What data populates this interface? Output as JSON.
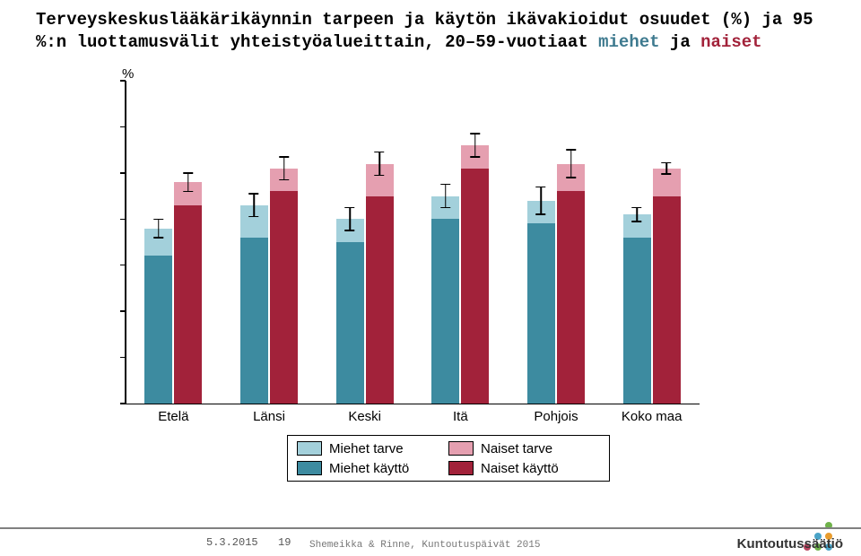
{
  "title_parts": {
    "prefix": "Terveyskeskuslääkärikäynnin tarpeen ja käytön ikävakioidut osuudet (%) ja 95 %:n luottamusvälit yhteistyöalueittain, 20–59-vuotiaat ",
    "miehet": "miehet",
    "joiner": " ja ",
    "naiset": "naiset"
  },
  "chart": {
    "type": "bar",
    "y_axis_title": "%",
    "ylim": [
      0,
      70
    ],
    "ytick_step": 10,
    "yticks": [
      0,
      10,
      20,
      30,
      40,
      50,
      60,
      70
    ],
    "categories": [
      "Etelä",
      "Länsi",
      "Keski",
      "Itä",
      "Pohjois",
      "Koko maa"
    ],
    "series": [
      {
        "key": "miehet_tarve",
        "label": "Miehet tarve",
        "color": "#a3d0db"
      },
      {
        "key": "miehet_kaytto",
        "label": "Miehet käyttö",
        "color": "#3d8ba0"
      },
      {
        "key": "naiset_tarve",
        "label": "Naiset tarve",
        "color": "#e59fb0"
      },
      {
        "key": "naiset_kaytto",
        "label": "Naiset käyttö",
        "color": "#a2223a"
      }
    ],
    "values": {
      "miehet_tarve": [
        38,
        43,
        40,
        45,
        44,
        41
      ],
      "miehet_kaytto": [
        32,
        36,
        35,
        40,
        39,
        36
      ],
      "naiset_tarve": [
        48,
        51,
        52,
        56,
        52,
        51
      ],
      "naiset_kaytto": [
        43,
        46,
        45,
        51,
        46,
        45
      ]
    },
    "errors": {
      "miehet_tarve": [
        2.0,
        2.5,
        2.5,
        2.5,
        3.0,
        1.5
      ],
      "miehet_kaytto": [
        2.0,
        2.5,
        2.5,
        2.5,
        3.0,
        1.5
      ],
      "naiset_tarve": [
        2.0,
        2.5,
        2.5,
        2.5,
        3.0,
        1.2
      ],
      "naiset_kaytto": [
        2.0,
        2.5,
        2.5,
        2.5,
        3.0,
        1.2
      ]
    },
    "bar_group_width": 0.6,
    "pair_gap": 0.02,
    "background_color": "#ffffff",
    "axis_color": "#000000"
  },
  "legend": {
    "items": [
      {
        "label": "Miehet tarve",
        "color": "#a3d0db"
      },
      {
        "label": "Naiset tarve",
        "color": "#e59fb0"
      },
      {
        "label": "Miehet käyttö",
        "color": "#3d8ba0"
      },
      {
        "label": "Naiset käyttö",
        "color": "#a2223a"
      }
    ]
  },
  "footer": {
    "date": "5.3.2015",
    "page": "19",
    "credit": "Shemeikka & Rinne, Kuntoutuspäivät 2015",
    "logo": "Kuntoutussäätiö"
  },
  "dots_colors": [
    "#6fb24a",
    "#4aa3c7",
    "#e89c2e",
    "#b8455f",
    "#6fb24a",
    "#4aa3c7"
  ]
}
